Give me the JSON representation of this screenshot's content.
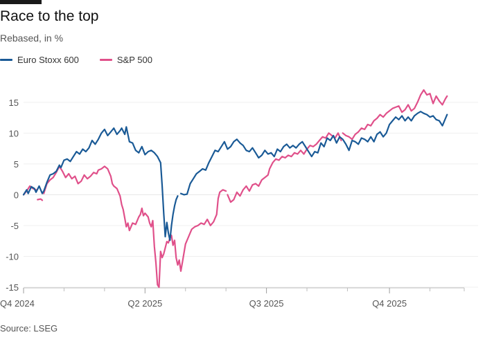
{
  "title": "Race to the top",
  "subtitle": "Rebased, in %",
  "source": "Source: LSEG",
  "chart_data": {
    "type": "line",
    "title": "Race to the top",
    "subtitle": "Rebased, in %",
    "xlabel": "",
    "ylabel": "",
    "x_unit": "trading day index (0 = start of Q4 2024)",
    "xlim": [
      0,
      283
    ],
    "ylim": [
      -15,
      17
    ],
    "yticks": [
      15,
      10,
      5,
      0,
      -5,
      -10,
      -15
    ],
    "xticks": [
      {
        "label": "Q4 2024",
        "x": 0
      },
      {
        "label": "Q2 2025",
        "x": 78
      },
      {
        "label": "Q3 2025",
        "x": 156
      },
      {
        "label": "Q4 2025",
        "x": 235
      }
    ],
    "minor_xticks": [
      26,
      52,
      104,
      130,
      182,
      208,
      261,
      283
    ],
    "grid": true,
    "series": [
      {
        "name": "Euro Stoxx 600",
        "color": "#1a5a96",
        "points": [
          [
            0,
            0
          ],
          [
            2,
            0.8
          ],
          [
            3,
            0.2
          ],
          [
            5,
            1.3
          ],
          [
            7,
            1.0
          ],
          [
            8,
            0.4
          ],
          [
            10,
            1.4
          ],
          [
            12,
            0.2
          ],
          [
            13,
            0.6
          ],
          [
            15,
            2.0
          ],
          [
            17,
            3.2
          ],
          [
            19,
            3.4
          ],
          [
            21,
            3.8
          ],
          [
            23,
            4.8
          ],
          [
            24,
            4.4
          ],
          [
            26,
            5.6
          ],
          [
            28,
            5.8
          ],
          [
            30,
            5.4
          ],
          [
            32,
            6.2
          ],
          [
            34,
            7.0
          ],
          [
            36,
            6.6
          ],
          [
            38,
            7.4
          ],
          [
            40,
            7.0
          ],
          [
            42,
            7.6
          ],
          [
            44,
            8.8
          ],
          [
            46,
            8.2
          ],
          [
            48,
            9.0
          ],
          [
            50,
            10.0
          ],
          [
            52,
            10.6
          ],
          [
            54,
            9.6
          ],
          [
            56,
            10.2
          ],
          [
            58,
            10.8
          ],
          [
            60,
            9.8
          ],
          [
            62,
            10.4
          ],
          [
            63,
            10.8
          ],
          [
            65,
            9.8
          ],
          [
            66,
            11.0
          ],
          [
            68,
            8.6
          ],
          [
            70,
            8.4
          ],
          [
            72,
            7.2
          ],
          [
            74,
            6.8
          ],
          [
            76,
            7.8
          ],
          [
            78,
            6.5
          ],
          [
            80,
            7.0
          ],
          [
            82,
            7.2
          ],
          [
            84,
            6.8
          ],
          [
            86,
            6.2
          ],
          [
            88,
            5.2
          ],
          [
            89,
            1.5
          ],
          [
            90,
            -3.0
          ],
          [
            91,
            -6.8
          ],
          [
            92,
            -4.5
          ],
          [
            93,
            -6.2
          ],
          [
            94,
            -7.4
          ],
          [
            95,
            -5.0
          ],
          [
            96,
            -3.2
          ],
          [
            97,
            -1.8
          ],
          [
            98,
            -0.8
          ],
          [
            99,
            -0.2
          ],
          [
            101,
            0.2
          ],
          [
            103,
            0
          ],
          [
            105,
            0.1
          ],
          [
            107,
            1.8
          ],
          [
            109,
            2.6
          ],
          [
            111,
            3.4
          ],
          [
            113,
            3.8
          ],
          [
            115,
            4.2
          ],
          [
            117,
            4.0
          ],
          [
            119,
            5.2
          ],
          [
            121,
            6.2
          ],
          [
            123,
            7.2
          ],
          [
            125,
            7.0
          ],
          [
            127,
            7.8
          ],
          [
            129,
            8.6
          ],
          [
            131,
            7.4
          ],
          [
            133,
            7.8
          ],
          [
            135,
            8.6
          ],
          [
            137,
            9.0
          ],
          [
            139,
            8.4
          ],
          [
            141,
            8.0
          ],
          [
            143,
            7.2
          ],
          [
            145,
            7.0
          ],
          [
            147,
            7.6
          ],
          [
            149,
            6.8
          ],
          [
            151,
            6.0
          ],
          [
            153,
            6.4
          ],
          [
            155,
            7.2
          ],
          [
            157,
            6.6
          ],
          [
            159,
            6.8
          ],
          [
            161,
            6.2
          ],
          [
            163,
            7.4
          ],
          [
            165,
            7.0
          ],
          [
            167,
            7.8
          ],
          [
            169,
            8.2
          ],
          [
            171,
            7.6
          ],
          [
            173,
            8.0
          ],
          [
            175,
            7.6
          ],
          [
            177,
            8.2
          ],
          [
            179,
            8.6
          ],
          [
            181,
            7.8
          ],
          [
            183,
            7.0
          ],
          [
            185,
            6.2
          ],
          [
            187,
            7.0
          ],
          [
            189,
            6.8
          ],
          [
            191,
            8.4
          ],
          [
            193,
            7.8
          ],
          [
            195,
            9.2
          ],
          [
            197,
            8.8
          ],
          [
            199,
            9.6
          ],
          [
            201,
            8.4
          ],
          [
            203,
            9.4
          ],
          [
            205,
            9.0
          ],
          [
            207,
            8.2
          ],
          [
            209,
            7.2
          ],
          [
            211,
            8.8
          ],
          [
            213,
            8.6
          ],
          [
            215,
            8.2
          ],
          [
            217,
            9.2
          ],
          [
            219,
            9.0
          ],
          [
            221,
            8.6
          ],
          [
            223,
            9.4
          ],
          [
            225,
            8.6
          ],
          [
            227,
            9.8
          ],
          [
            229,
            10.2
          ],
          [
            231,
            9.4
          ],
          [
            233,
            10.0
          ],
          [
            235,
            11.4
          ],
          [
            237,
            12.0
          ],
          [
            239,
            12.6
          ],
          [
            241,
            12.2
          ],
          [
            243,
            12.8
          ],
          [
            245,
            12.0
          ],
          [
            247,
            12.6
          ],
          [
            249,
            12.0
          ],
          [
            251,
            12.8
          ],
          [
            253,
            13.2
          ],
          [
            255,
            13.5
          ],
          [
            257,
            13.2
          ],
          [
            259,
            13.0
          ],
          [
            261,
            12.6
          ],
          [
            263,
            12.8
          ],
          [
            265,
            12.2
          ],
          [
            267,
            12.0
          ],
          [
            269,
            11.2
          ],
          [
            271,
            12.4
          ],
          [
            272,
            13.0
          ]
        ]
      },
      {
        "name": "S&P 500",
        "color": "#e0508a",
        "points": [
          [
            0,
            0
          ],
          [
            2,
            0.6
          ],
          [
            4,
            1.4
          ],
          [
            6,
            1.0
          ],
          [
            8,
            0.8
          ],
          [
            9,
            -0.8
          ],
          [
            11,
            -0.7
          ],
          [
            12,
            -0.9
          ],
          [
            13,
            0.2
          ],
          [
            15,
            1.8
          ],
          [
            17,
            2.4
          ],
          [
            19,
            2.8
          ],
          [
            21,
            3.6
          ],
          [
            23,
            4.6
          ],
          [
            25,
            3.8
          ],
          [
            27,
            2.8
          ],
          [
            29,
            3.4
          ],
          [
            31,
            2.6
          ],
          [
            33,
            3.0
          ],
          [
            35,
            1.8
          ],
          [
            37,
            2.2
          ],
          [
            39,
            3.2
          ],
          [
            41,
            2.6
          ],
          [
            43,
            3.0
          ],
          [
            45,
            3.6
          ],
          [
            47,
            3.4
          ],
          [
            48,
            4.0
          ],
          [
            50,
            4.2
          ],
          [
            52,
            4.6
          ],
          [
            54,
            4.2
          ],
          [
            56,
            3.0
          ],
          [
            57,
            1.8
          ],
          [
            58,
            1.4
          ],
          [
            60,
            1.0
          ],
          [
            62,
            -0.2
          ],
          [
            63,
            -1.6
          ],
          [
            64,
            -2.4
          ],
          [
            65,
            -3.8
          ],
          [
            66,
            -5.2
          ],
          [
            67,
            -4.6
          ],
          [
            68,
            -5.8
          ],
          [
            70,
            -4.6
          ],
          [
            72,
            -4.8
          ],
          [
            74,
            -3.6
          ],
          [
            75,
            -3.2
          ],
          [
            76,
            -2.2
          ],
          [
            77,
            -3.4
          ],
          [
            78,
            -3.0
          ],
          [
            80,
            -3.6
          ],
          [
            81,
            -4.6
          ],
          [
            82,
            -5.2
          ],
          [
            83,
            -4.2
          ],
          [
            84,
            -8.4
          ],
          [
            85,
            -11.0
          ],
          [
            86,
            -14.6
          ],
          [
            87,
            -15.0
          ],
          [
            88,
            -9.2
          ],
          [
            89,
            -10.2
          ],
          [
            90,
            -9.6
          ],
          [
            92,
            -7.6
          ],
          [
            93,
            -7.8
          ],
          [
            94,
            -7.0
          ],
          [
            95,
            -6.6
          ],
          [
            96,
            -8.2
          ],
          [
            97,
            -7.4
          ],
          [
            98,
            -10.2
          ],
          [
            99,
            -11.4
          ],
          [
            100,
            -10.6
          ],
          [
            101,
            -12.4
          ],
          [
            102,
            -11.0
          ],
          [
            104,
            -8.0
          ],
          [
            106,
            -6.8
          ],
          [
            108,
            -5.6
          ],
          [
            110,
            -5.2
          ],
          [
            112,
            -5.0
          ],
          [
            114,
            -4.6
          ],
          [
            116,
            -4.8
          ],
          [
            118,
            -4.0
          ],
          [
            120,
            -5.0
          ],
          [
            122,
            -4.4
          ],
          [
            124,
            -3.2
          ],
          [
            125,
            -0.6
          ],
          [
            126,
            0.4
          ],
          [
            128,
            0.8
          ],
          [
            130,
            0.6
          ],
          [
            131,
            0
          ],
          [
            133,
            -1.2
          ],
          [
            135,
            -0.8
          ],
          [
            137,
            0.4
          ],
          [
            139,
            -0.2
          ],
          [
            141,
            0.8
          ],
          [
            143,
            1.4
          ],
          [
            145,
            0.6
          ],
          [
            147,
            1.6
          ],
          [
            149,
            1.8
          ],
          [
            151,
            1.4
          ],
          [
            153,
            2.4
          ],
          [
            155,
            2.8
          ],
          [
            157,
            3.2
          ],
          [
            158,
            4.2
          ],
          [
            160,
            5.2
          ],
          [
            162,
            5.8
          ],
          [
            164,
            5.6
          ],
          [
            166,
            6.2
          ],
          [
            168,
            6.0
          ],
          [
            170,
            6.4
          ],
          [
            172,
            6.2
          ],
          [
            174,
            6.8
          ],
          [
            176,
            6.6
          ],
          [
            178,
            7.2
          ],
          [
            180,
            6.6
          ],
          [
            182,
            7.4
          ],
          [
            184,
            8.0
          ],
          [
            186,
            7.8
          ],
          [
            188,
            8.2
          ],
          [
            190,
            8.8
          ],
          [
            192,
            9.4
          ],
          [
            194,
            9.2
          ],
          [
            196,
            10.0
          ],
          [
            198,
            9.6
          ],
          [
            200,
            9.2
          ],
          [
            202,
            10.0
          ],
          [
            204,
            8.8
          ],
          [
            205,
            10.0
          ],
          [
            207,
            9.6
          ],
          [
            209,
            9.4
          ],
          [
            211,
            9.0
          ],
          [
            213,
            9.8
          ],
          [
            215,
            10.2
          ],
          [
            217,
            10.8
          ],
          [
            219,
            10.6
          ],
          [
            221,
            11.4
          ],
          [
            223,
            11.2
          ],
          [
            225,
            12.0
          ],
          [
            227,
            12.4
          ],
          [
            229,
            13.0
          ],
          [
            231,
            12.6
          ],
          [
            233,
            13.2
          ],
          [
            235,
            13.6
          ],
          [
            237,
            14.0
          ],
          [
            239,
            14.2
          ],
          [
            241,
            14.4
          ],
          [
            243,
            13.4
          ],
          [
            245,
            13.8
          ],
          [
            247,
            14.6
          ],
          [
            249,
            13.6
          ],
          [
            251,
            14.0
          ],
          [
            253,
            15.0
          ],
          [
            255,
            16.2
          ],
          [
            257,
            17.0
          ],
          [
            259,
            16.2
          ],
          [
            261,
            16.4
          ],
          [
            263,
            14.8
          ],
          [
            265,
            16.0
          ],
          [
            267,
            15.2
          ],
          [
            269,
            14.6
          ],
          [
            271,
            15.6
          ],
          [
            272,
            16.0
          ]
        ]
      }
    ],
    "gaps": {
      "Euro Stoxx 600": [
        [
          99,
          101
        ]
      ],
      "S&P 500": [
        [
          8,
          9
        ],
        [
          12,
          13
        ],
        [
          130,
          131
        ],
        [
          187,
          188
        ],
        [
          204,
          205
        ]
      ]
    }
  }
}
